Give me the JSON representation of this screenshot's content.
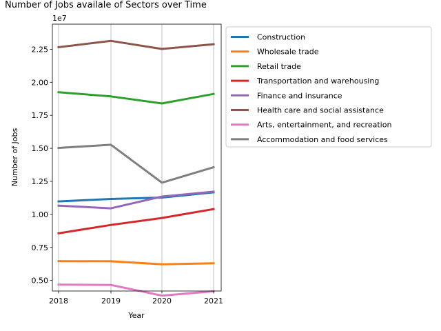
{
  "chart_data": {
    "type": "line",
    "title": "Number of Jobs availale of Sectors over Time",
    "xlabel": "Year",
    "ylabel": "Number of Jobs",
    "y_multiplier_label": "1e7",
    "x": [
      "2018",
      "2019",
      "2020",
      "2021"
    ],
    "ylim": [
      0.42,
      2.44
    ],
    "yticks": [
      0.5,
      0.75,
      1.0,
      1.25,
      1.5,
      1.75,
      2.0,
      2.25
    ],
    "ytick_labels": [
      "0.50",
      "0.75",
      "1.00",
      "1.25",
      "1.50",
      "1.75",
      "2.00",
      "2.25"
    ],
    "grid": "vertical",
    "legend_position": "outside-right",
    "series": [
      {
        "name": "Construction",
        "color": "#1f77b4",
        "values": [
          1.098,
          1.117,
          1.127,
          1.167
        ]
      },
      {
        "name": "Wholesale trade",
        "color": "#ff7f0e",
        "values": [
          0.646,
          0.645,
          0.622,
          0.63
        ]
      },
      {
        "name": "Retail trade",
        "color": "#2ca02c",
        "values": [
          1.925,
          1.893,
          1.84,
          1.912
        ]
      },
      {
        "name": "Transportation and warehousing",
        "color": "#d62728",
        "values": [
          0.857,
          0.92,
          0.973,
          1.04
        ]
      },
      {
        "name": "Finance and insurance",
        "color": "#9467bd",
        "values": [
          1.066,
          1.046,
          1.135,
          1.172
        ]
      },
      {
        "name": "Health care and social assistance",
        "color": "#8c564b",
        "values": [
          2.265,
          2.313,
          2.252,
          2.288
        ]
      },
      {
        "name": "Arts, entertainment, and recreation",
        "color": "#e377c2",
        "values": [
          0.468,
          0.466,
          0.385,
          0.418
        ]
      },
      {
        "name": "Accommodation and food services",
        "color": "#7f7f7f",
        "values": [
          1.503,
          1.527,
          1.24,
          1.357
        ]
      }
    ]
  }
}
